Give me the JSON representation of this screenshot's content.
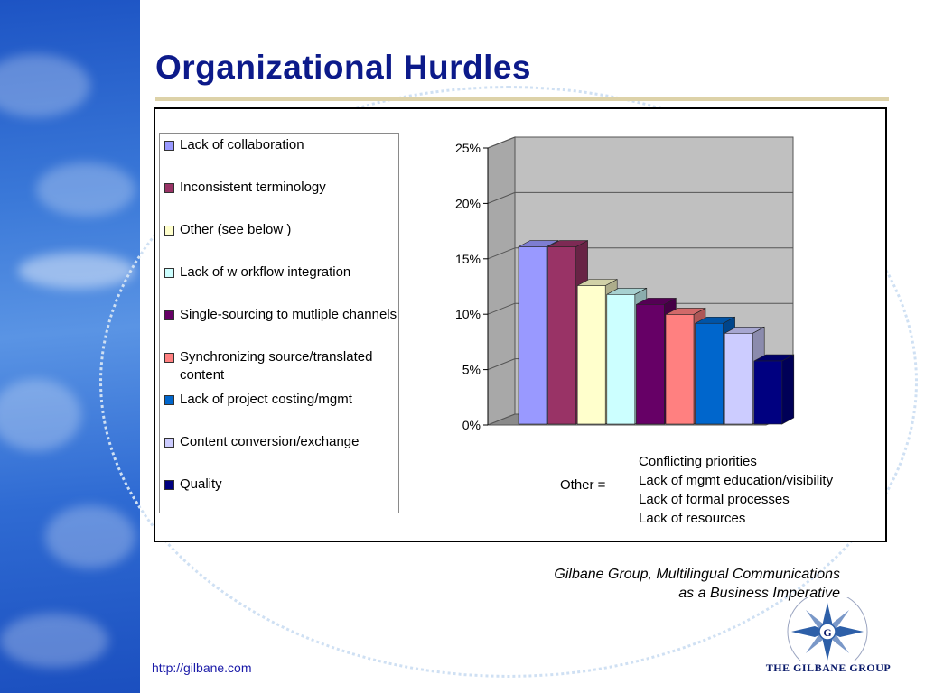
{
  "slide": {
    "title": "Organizational Hurdles",
    "source_line1": "Gilbane Group, Multilingual Communications",
    "source_line2": "as a Business Imperative",
    "url": "http://gilbane.com",
    "logo_letter": "G",
    "logo_text": "The Gilbane Group"
  },
  "other": {
    "label": "Other =",
    "items": [
      "Conflicting priorities",
      "Lack of mgmt education/visibility",
      "Lack of formal processes",
      "Lack of resources"
    ]
  },
  "chart_data": {
    "type": "bar",
    "title": "",
    "xlabel": "",
    "ylabel": "",
    "ylim": [
      0,
      0.25
    ],
    "yticks": [
      0,
      0.05,
      0.1,
      0.15,
      0.2,
      0.25
    ],
    "ytick_labels": [
      "0%",
      "5%",
      "10%",
      "15%",
      "20%",
      "25%"
    ],
    "grid": true,
    "legend_position": "left",
    "series": [
      {
        "name": "Lack of collaboration",
        "value": 0.16,
        "color": "#9999ff"
      },
      {
        "name": "Inconsistent terminology",
        "value": 0.16,
        "color": "#993366"
      },
      {
        "name": "Other (see below )",
        "value": 0.125,
        "color": "#ffffcc"
      },
      {
        "name": "Lack of w orkflow  integration",
        "value": 0.117,
        "color": "#ccffff"
      },
      {
        "name": "Single-sourcing to mutliple channels",
        "value": 0.108,
        "color": "#660066"
      },
      {
        "name": "Synchronizing source/translated content",
        "value": 0.099,
        "color": "#ff8080"
      },
      {
        "name": "Lack of project costing/mgmt",
        "value": 0.091,
        "color": "#0066cc"
      },
      {
        "name": "Content conversion/exchange",
        "value": 0.082,
        "color": "#ccccff"
      },
      {
        "name": "Quality",
        "value": 0.057,
        "color": "#000080"
      }
    ]
  }
}
